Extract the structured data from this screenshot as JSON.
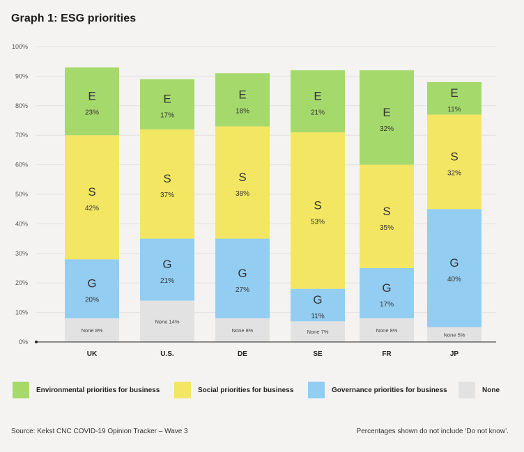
{
  "page": {
    "title": "Graph 1: ESG priorities"
  },
  "chart_data": {
    "type": "bar",
    "stacked": true,
    "title": "Graph 1: ESG priorities",
    "categories": [
      "UK",
      "U.S.",
      "DE",
      "SE",
      "FR",
      "JP"
    ],
    "ylim": [
      0,
      100
    ],
    "yticks": [
      "0%",
      "10%",
      "20%",
      "30%",
      "40%",
      "50%",
      "60%",
      "70%",
      "80%",
      "90%",
      "100%"
    ],
    "grid": true,
    "legend_position": "bottom",
    "series": [
      {
        "name": "None",
        "letter": "",
        "label_prefix": "None",
        "color": "#e2e2e2",
        "values": [
          8,
          14,
          8,
          7,
          8,
          5
        ]
      },
      {
        "name": "Governance priorities for business",
        "letter": "G",
        "color": "#93cdf2",
        "values": [
          20,
          21,
          27,
          11,
          17,
          40
        ]
      },
      {
        "name": "Social priorities for business",
        "letter": "S",
        "color": "#f3e663",
        "values": [
          42,
          37,
          38,
          53,
          35,
          32
        ]
      },
      {
        "name": "Environmental priorities for business",
        "letter": "E",
        "color": "#a5d96c",
        "values": [
          23,
          17,
          18,
          21,
          32,
          11
        ]
      }
    ]
  },
  "legend": [
    {
      "label": "Environmental priorities for business",
      "color": "#a5d96c"
    },
    {
      "label": "Social priorities for business",
      "color": "#f3e663"
    },
    {
      "label": "Governance priorities for business",
      "color": "#93cdf2"
    },
    {
      "label": "None",
      "color": "#e2e2e2"
    }
  ],
  "footer": {
    "source": "Source: Kekst CNC COVID-19 Opinion Tracker – Wave 3",
    "note": "Percentages shown do not include ‘Do not know’."
  }
}
